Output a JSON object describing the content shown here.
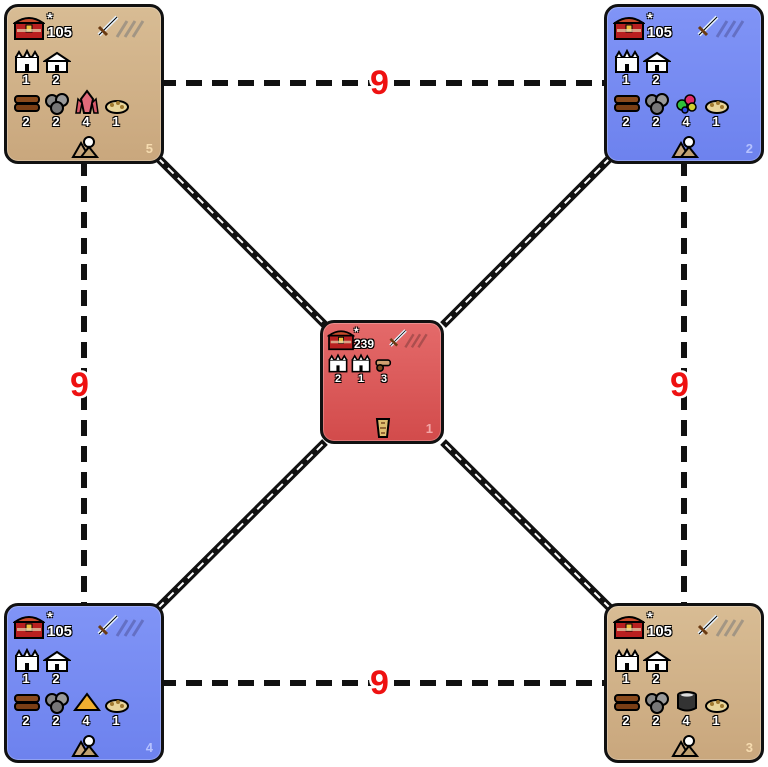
{
  "connections": {
    "top_guard": "9",
    "left_guard": "9",
    "right_guard": "9",
    "bottom_guard": "9"
  },
  "zones": {
    "top_left": {
      "gold": "105",
      "towns": [
        "1",
        "2"
      ],
      "res": [
        "2",
        "2",
        "4",
        "1"
      ],
      "id": "5"
    },
    "top_right": {
      "gold": "105",
      "towns": [
        "1",
        "2"
      ],
      "res": [
        "2",
        "2",
        "4",
        "1"
      ],
      "id": "2"
    },
    "center": {
      "gold": "239",
      "counts": [
        "2",
        "1",
        "3"
      ],
      "id": "1"
    },
    "bottom_left": {
      "gold": "105",
      "towns": [
        "1",
        "2"
      ],
      "res": [
        "2",
        "2",
        "4",
        "1"
      ],
      "id": "4"
    },
    "bottom_right": {
      "gold": "105",
      "towns": [
        "1",
        "2"
      ],
      "res": [
        "2",
        "2",
        "4",
        "1"
      ],
      "id": "3"
    }
  },
  "colors": {
    "tan": "#d2b48c",
    "blue": "#7589f2",
    "red": "#dc5858",
    "guard": "#ee1111"
  }
}
